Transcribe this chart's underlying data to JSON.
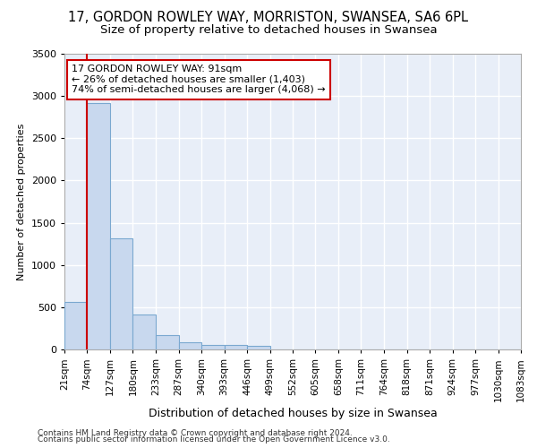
{
  "title1": "17, GORDON ROWLEY WAY, MORRISTON, SWANSEA, SA6 6PL",
  "title2": "Size of property relative to detached houses in Swansea",
  "xlabel": "Distribution of detached houses by size in Swansea",
  "ylabel": "Number of detached properties",
  "footnote1": "Contains HM Land Registry data © Crown copyright and database right 2024.",
  "footnote2": "Contains public sector information licensed under the Open Government Licence v3.0.",
  "bin_labels": [
    "21sqm",
    "74sqm",
    "127sqm",
    "180sqm",
    "233sqm",
    "287sqm",
    "340sqm",
    "393sqm",
    "446sqm",
    "499sqm",
    "552sqm",
    "605sqm",
    "658sqm",
    "711sqm",
    "764sqm",
    "818sqm",
    "871sqm",
    "924sqm",
    "977sqm",
    "1030sqm",
    "1083sqm"
  ],
  "bar_values": [
    560,
    2920,
    1320,
    410,
    165,
    80,
    55,
    50,
    45,
    0,
    0,
    0,
    0,
    0,
    0,
    0,
    0,
    0,
    0,
    0
  ],
  "bar_color": "#c8d8ee",
  "bar_edge_color": "#7aa8d0",
  "property_size_bin": 1,
  "property_label": "17 GORDON ROWLEY WAY: 91sqm",
  "annotation_line1": "← 26% of detached houses are smaller (1,403)",
  "annotation_line2": "74% of semi-detached houses are larger (4,068) →",
  "vline_color": "#cc0000",
  "annotation_box_facecolor": "#ffffff",
  "annotation_box_edgecolor": "#cc0000",
  "ylim": [
    0,
    3500
  ],
  "yticks": [
    0,
    500,
    1000,
    1500,
    2000,
    2500,
    3000,
    3500
  ],
  "bin_edges": [
    21,
    74,
    127,
    180,
    233,
    287,
    340,
    393,
    446,
    499,
    552,
    605,
    658,
    711,
    764,
    818,
    871,
    924,
    977,
    1030,
    1083
  ],
  "fig_facecolor": "#ffffff",
  "plot_facecolor": "#e8eef8",
  "grid_color": "#ffffff",
  "title1_fontsize": 10.5,
  "title2_fontsize": 9.5,
  "xlabel_fontsize": 9,
  "ylabel_fontsize": 8,
  "footnote_fontsize": 6.5
}
